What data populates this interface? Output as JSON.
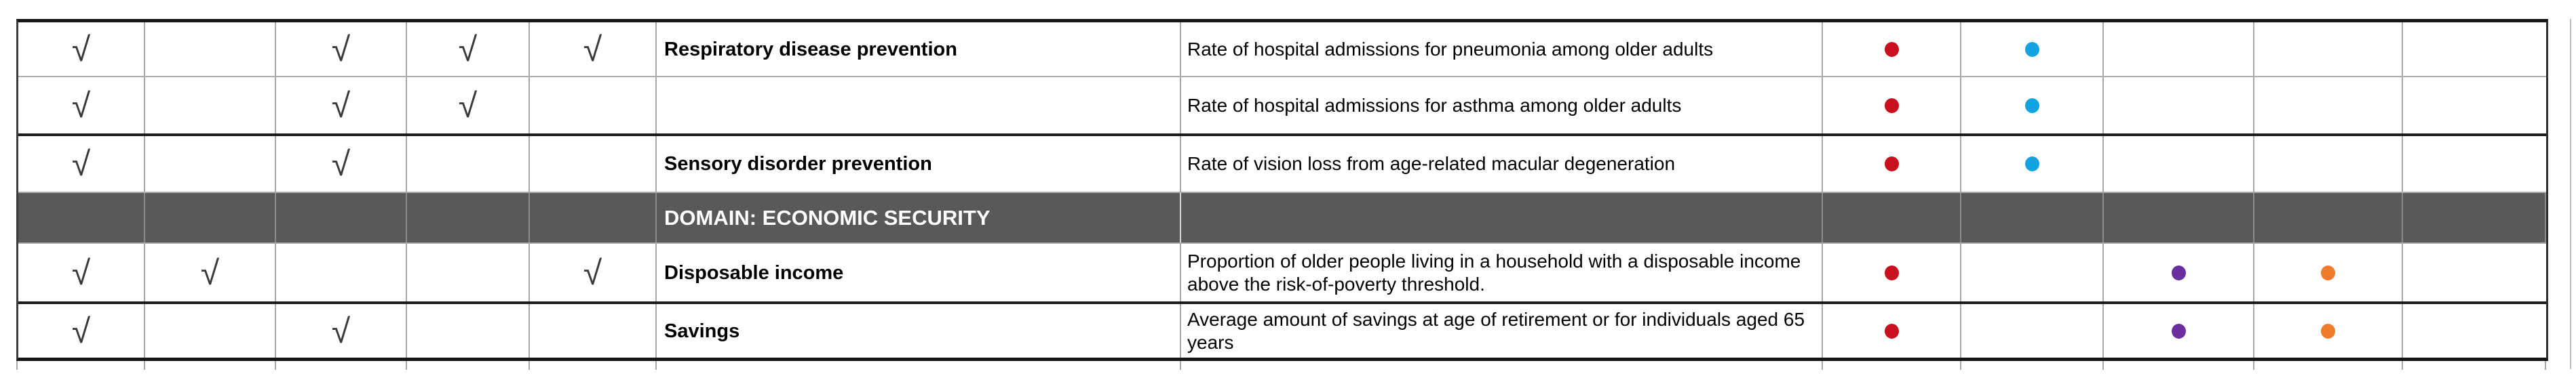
{
  "table": {
    "check_glyph": "√",
    "marker_colors": {
      "red": "#C8101E",
      "cyan": "#12A3E0",
      "purple": "#6B2E9E",
      "orange": "#EE7C2B"
    },
    "domain_header_bg": "#595959",
    "domain_header_text_color": "#FFFFFF",
    "rows": [
      {
        "type": "data",
        "checks": [
          1,
          0,
          1,
          1,
          1
        ],
        "title": "Respiratory disease prevention",
        "description": "Rate of hospital admissions for pneumonia among older adults",
        "dots": [
          "red",
          "cyan",
          null,
          null,
          null
        ]
      },
      {
        "type": "data",
        "checks": [
          1,
          0,
          1,
          1,
          0
        ],
        "title": "",
        "description": "Rate of hospital admissions for asthma among older adults",
        "dots": [
          "red",
          "cyan",
          null,
          null,
          null
        ]
      },
      {
        "type": "data",
        "thick_top": true,
        "checks": [
          1,
          0,
          1,
          0,
          0
        ],
        "title": "Sensory disorder prevention",
        "description": "Rate of vision loss from age-related macular degeneration",
        "dots": [
          "red",
          "cyan",
          null,
          null,
          null
        ]
      },
      {
        "type": "domain",
        "label": "DOMAIN: ECONOMIC SECURITY"
      },
      {
        "type": "data",
        "checks": [
          1,
          1,
          0,
          0,
          1
        ],
        "title": "Disposable income",
        "description": "Proportion of older people living in a household with a disposable income above the risk-of-poverty threshold.",
        "dots": [
          "red",
          null,
          "purple",
          "orange",
          null
        ]
      },
      {
        "type": "data",
        "thick_top": true,
        "checks": [
          1,
          0,
          1,
          0,
          0
        ],
        "title": "Savings",
        "description": "Average amount of savings at age of retirement or for individuals aged 65 years",
        "dots": [
          "red",
          null,
          "purple",
          "orange",
          null
        ]
      }
    ]
  }
}
